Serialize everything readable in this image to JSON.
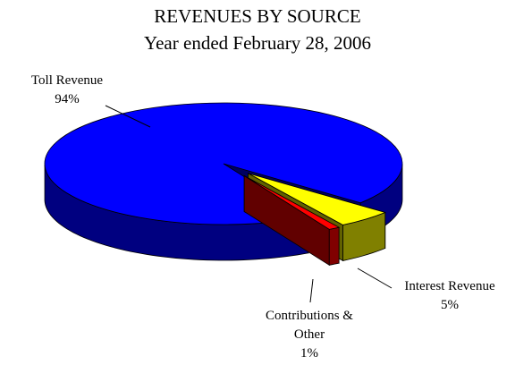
{
  "chart_data": {
    "type": "pie",
    "title": "REVENUES BY SOURCE",
    "subtitle": "Year ended February 28, 2006",
    "categories": [
      "Toll Revenue",
      "Interest Revenue",
      "Contributions & Other"
    ],
    "values": [
      94,
      5,
      1
    ],
    "value_labels": [
      "94%",
      "5%",
      "1%"
    ],
    "colors": [
      "#0000ff",
      "#ffff00",
      "#ff0000"
    ]
  }
}
